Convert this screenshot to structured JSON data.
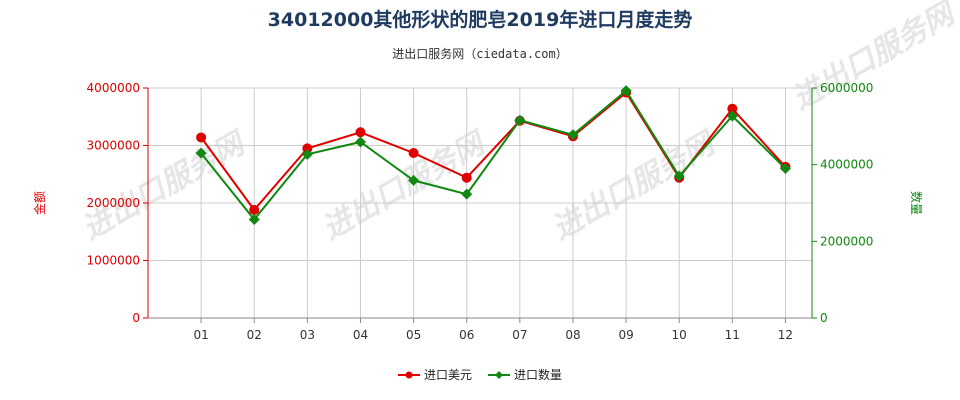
{
  "chart_data": {
    "type": "line",
    "title": "34012000其他形状的肥皂2019年进口月度走势",
    "subtitle": "进出口服务网（ciedata.com）",
    "categories": [
      "01",
      "02",
      "03",
      "04",
      "05",
      "06",
      "07",
      "08",
      "09",
      "10",
      "11",
      "12"
    ],
    "series": [
      {
        "name": "进口美元",
        "axis": "left",
        "color": "#e00000",
        "values": [
          3140000,
          1880000,
          2950000,
          3230000,
          2870000,
          2440000,
          3430000,
          3160000,
          3920000,
          2440000,
          3640000,
          2630000
        ]
      },
      {
        "name": "进口数量",
        "axis": "right",
        "color": "#118811",
        "values": [
          4300000,
          2570000,
          4270000,
          4590000,
          3590000,
          3230000,
          5160000,
          4780000,
          5930000,
          3700000,
          5270000,
          3900000
        ]
      }
    ],
    "y_left": {
      "label": "金额",
      "ylim": [
        0,
        4000000
      ],
      "ticks": [
        "0",
        "1000000",
        "2000000",
        "3000000",
        "4000000"
      ],
      "color": "#e00000"
    },
    "y_right": {
      "label": "数量",
      "ylim": [
        0,
        6000000
      ],
      "ticks": [
        "0",
        "2000000",
        "4000000",
        "6000000"
      ],
      "color": "#118811"
    },
    "grid": true,
    "legend_position": "bottom",
    "watermark_text": "进出口服务网"
  }
}
